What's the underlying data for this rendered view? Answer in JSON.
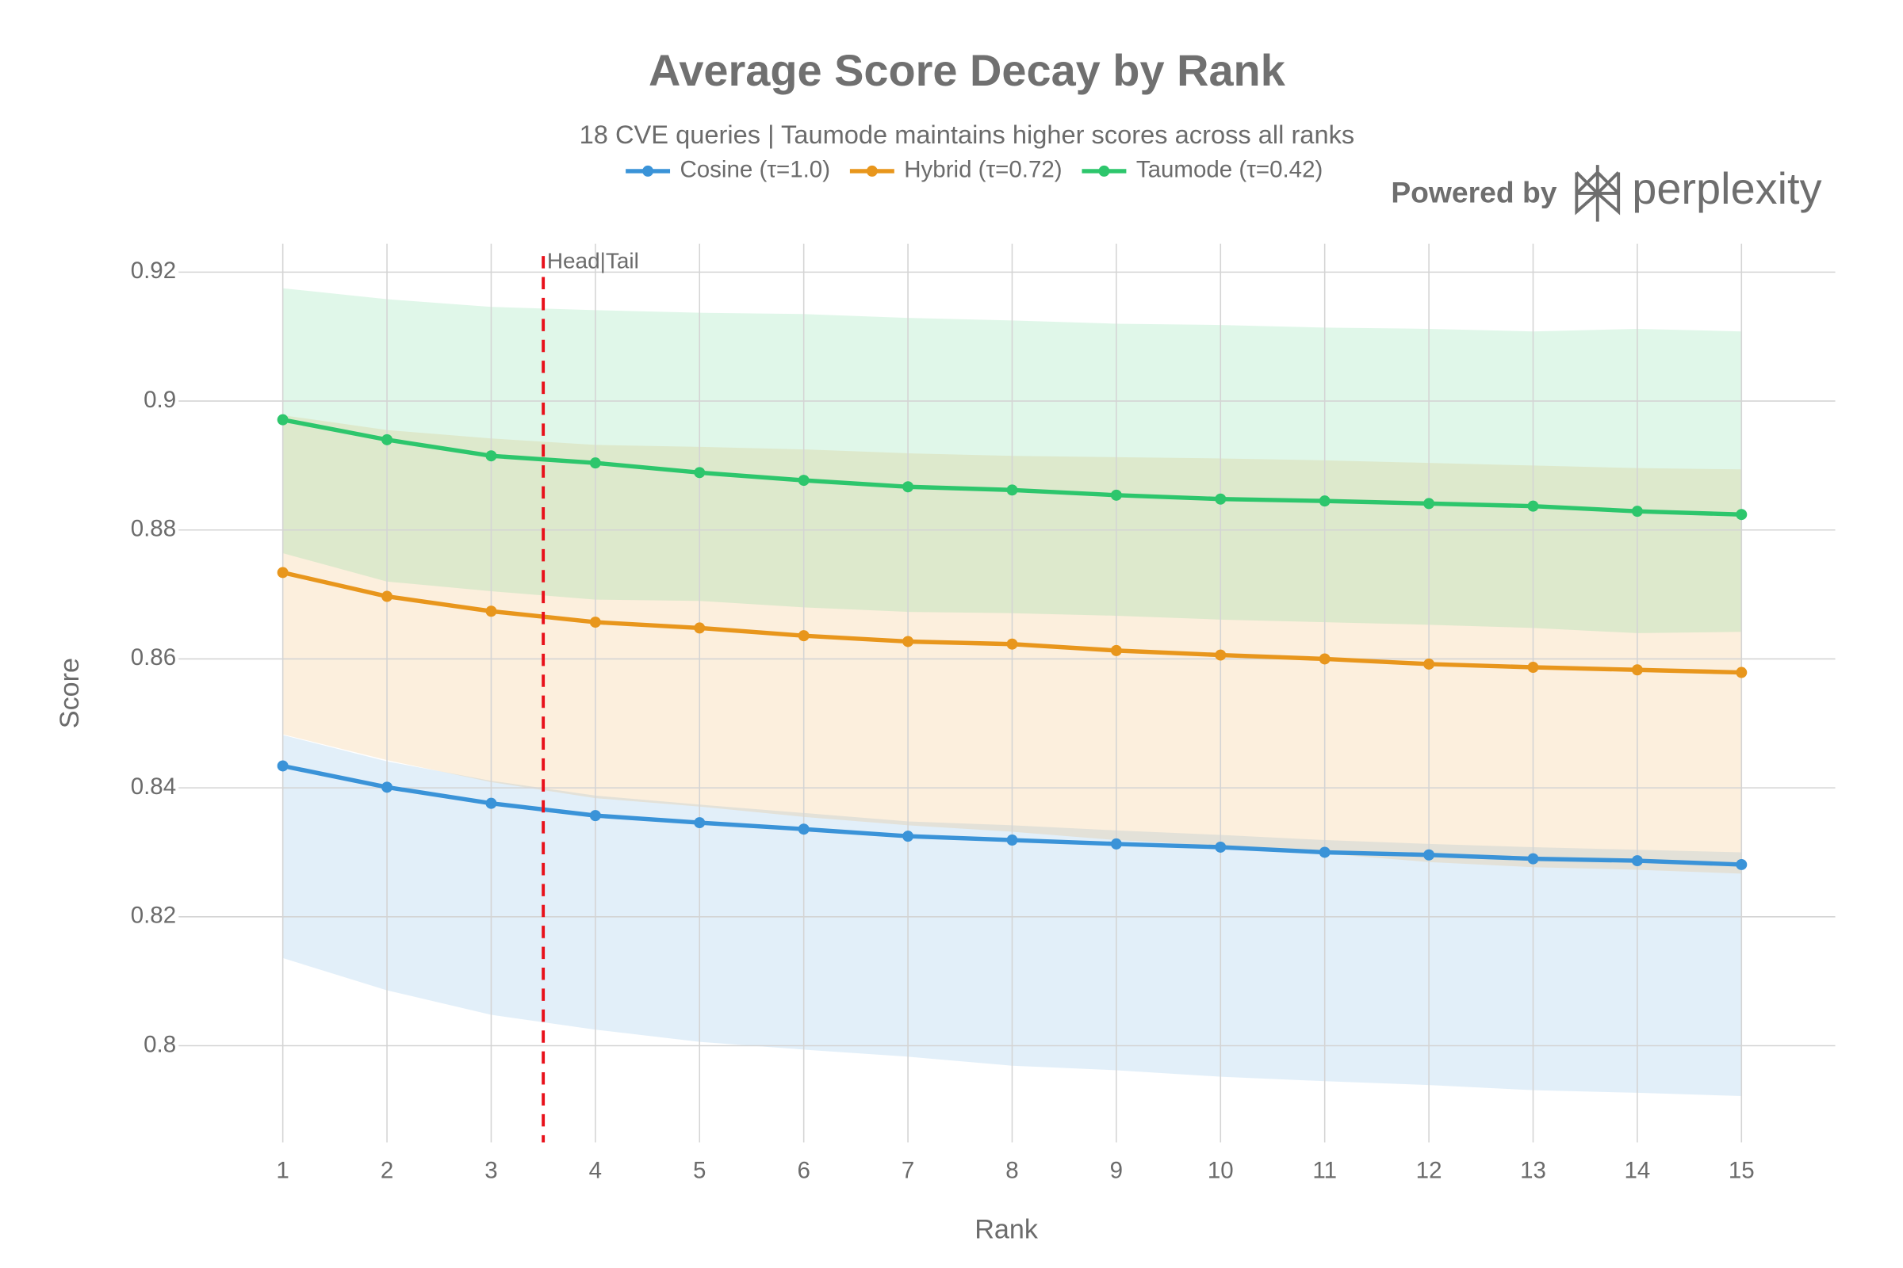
{
  "chart_data": {
    "type": "line",
    "title": "Average Score Decay by Rank",
    "subtitle": "18 CVE queries | Taumode maintains higher scores across all ranks",
    "x_label": "Rank",
    "y_label": "Score",
    "x": [
      1,
      2,
      3,
      4,
      5,
      6,
      7,
      8,
      9,
      10,
      11,
      12,
      13,
      14,
      15
    ],
    "xlim": [
      0.0,
      15.9
    ],
    "xticks": [
      1,
      2,
      3,
      4,
      5,
      6,
      7,
      8,
      9,
      10,
      11,
      12,
      13,
      14,
      15
    ],
    "ylim": [
      0.785,
      0.9244
    ],
    "yticks": [
      0.8,
      0.82,
      0.84,
      0.86,
      0.88,
      0.9,
      0.92
    ],
    "grid": true,
    "legend_position": "top",
    "series": [
      {
        "name": "Cosine (τ=1.0)",
        "color": "#3a93d8",
        "values": [
          0.8434,
          0.8401,
          0.8376,
          0.8357,
          0.8346,
          0.8336,
          0.8325,
          0.8319,
          0.8313,
          0.8308,
          0.83,
          0.8296,
          0.829,
          0.8287,
          0.8281
        ],
        "upper": [
          0.8482,
          0.8441,
          0.8411,
          0.8388,
          0.8374,
          0.8361,
          0.8348,
          0.8342,
          0.8334,
          0.8327,
          0.8319,
          0.8313,
          0.8308,
          0.8304,
          0.83
        ],
        "lower": [
          0.8136,
          0.8086,
          0.8048,
          0.8025,
          0.8006,
          0.7994,
          0.7983,
          0.7969,
          0.7962,
          0.7952,
          0.7945,
          0.7939,
          0.7931,
          0.7927,
          0.7922
        ]
      },
      {
        "name": "Hybrid (τ=0.72)",
        "color": "#e8961c",
        "values": [
          0.8734,
          0.8697,
          0.8674,
          0.8657,
          0.8648,
          0.8636,
          0.8627,
          0.8623,
          0.8613,
          0.8606,
          0.86,
          0.8592,
          0.8587,
          0.8583,
          0.8579
        ],
        "upper": [
          0.8978,
          0.8955,
          0.8942,
          0.8932,
          0.8929,
          0.8925,
          0.8919,
          0.8915,
          0.8913,
          0.8911,
          0.8908,
          0.8904,
          0.89,
          0.8896,
          0.8894
        ],
        "lower": [
          0.8483,
          0.8443,
          0.8409,
          0.8384,
          0.8371,
          0.8355,
          0.8342,
          0.8332,
          0.8319,
          0.831,
          0.8298,
          0.8285,
          0.8277,
          0.8273,
          0.8267
        ]
      },
      {
        "name": "Taumode (τ=0.42)",
        "color": "#2dc66c",
        "values": [
          0.8971,
          0.894,
          0.8915,
          0.8904,
          0.8889,
          0.8877,
          0.8867,
          0.8862,
          0.8854,
          0.8848,
          0.8845,
          0.8841,
          0.8837,
          0.8829,
          0.8824
        ],
        "upper": [
          0.9175,
          0.9158,
          0.9146,
          0.9141,
          0.9137,
          0.9135,
          0.9129,
          0.9125,
          0.912,
          0.9118,
          0.9114,
          0.9112,
          0.9108,
          0.9112,
          0.9108
        ],
        "lower": [
          0.8764,
          0.872,
          0.8705,
          0.8692,
          0.869,
          0.868,
          0.8673,
          0.8671,
          0.8667,
          0.8661,
          0.8657,
          0.8653,
          0.8648,
          0.864,
          0.8642
        ]
      }
    ],
    "vline": {
      "x": 3.5,
      "label": "Head|Tail",
      "color": "#e8101a"
    },
    "watermark": {
      "prefix": "Powered by",
      "brand": "perplexity"
    }
  }
}
